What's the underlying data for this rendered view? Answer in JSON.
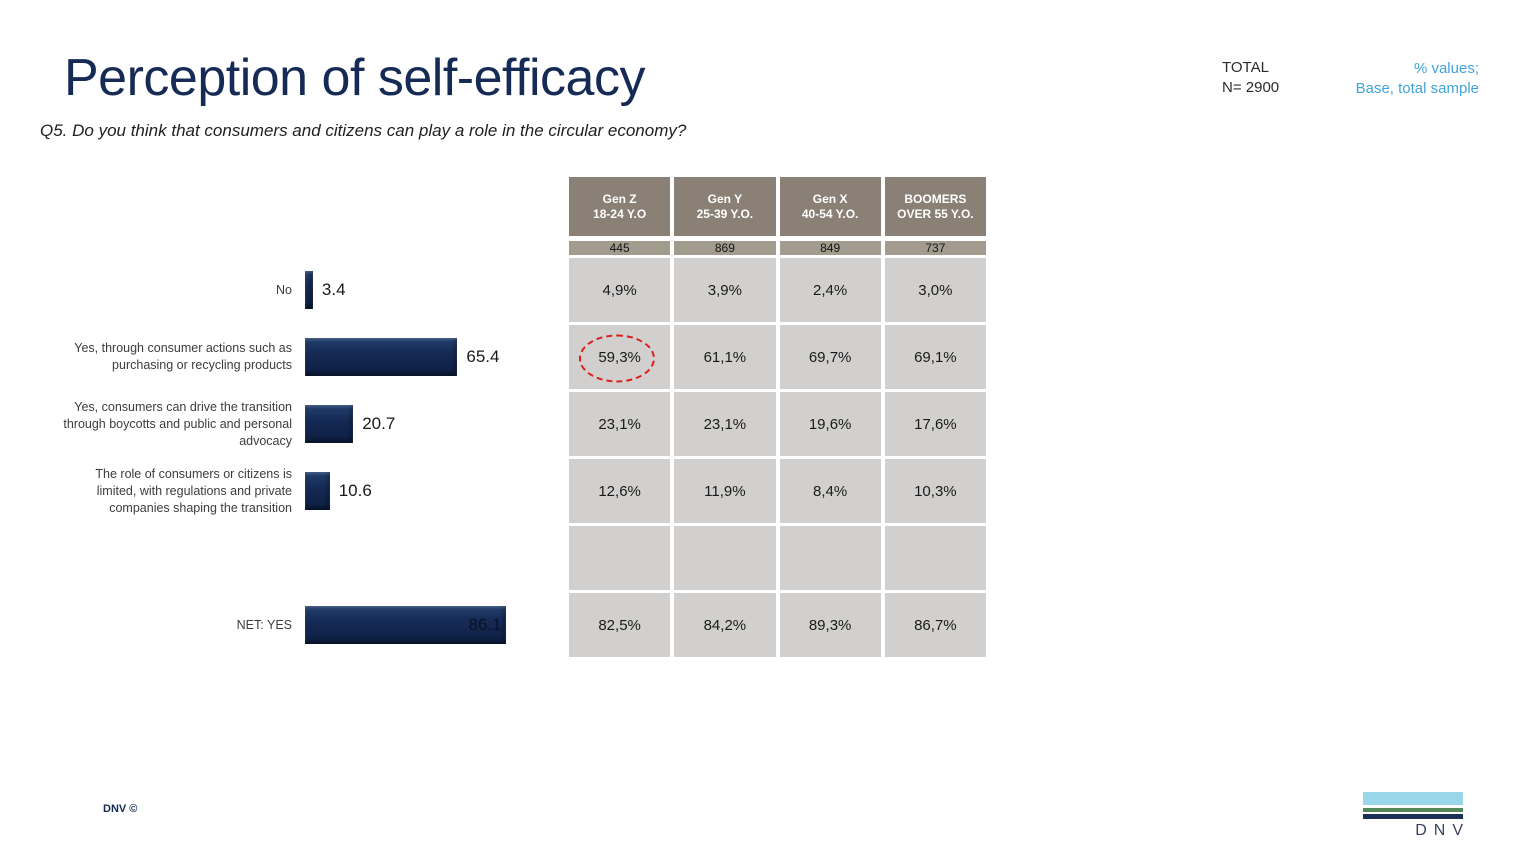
{
  "slide": {
    "title": "Perception of self-efficacy",
    "question": "Q5. Do you think that consumers and citizens can play a role in the circular economy?",
    "total": {
      "label": "TOTAL",
      "n": "N= 2900"
    },
    "note": {
      "line1": "% values;",
      "line2": "Base, total sample"
    },
    "footer_left": "DNV ©",
    "logo_text": "DNV"
  },
  "colors": {
    "accent_navy": "#152a55",
    "table_header_bg": "#8a8076",
    "table_base_bg": "#a49b8f",
    "table_cell_bg": "#d1d0ce",
    "note_blue": "#41a4d8",
    "highlight_red": "#dd1d1d",
    "logo_lightblue": "#99d6e9",
    "logo_green": "#52885a",
    "logo_navy": "#1a2f56"
  },
  "chart_data": [
    {
      "type": "bar",
      "orientation": "horizontal",
      "title": "Perception of self-efficacy (total sample)",
      "categories": [
        "No",
        "Yes, through consumer actions such as purchasing or recycling products",
        "Yes, consumers can drive the transition through boycotts and public and personal advocacy",
        "The role of consumers or citizens is limited, with regulations and private companies shaping the transition",
        "NET: YES"
      ],
      "values": [
        3.4,
        65.4,
        20.7,
        10.6,
        86.1
      ],
      "value_labels": [
        "3.4",
        "65.4",
        "20.7",
        "10.6",
        "86.1"
      ],
      "value_label_inside": [
        false,
        false,
        false,
        false,
        true
      ],
      "xlim": [
        0,
        100
      ],
      "grid": false,
      "legend": false
    },
    {
      "type": "table",
      "columns": [
        {
          "gen": "Gen Z",
          "age": "18-24 Y.O",
          "base": "445"
        },
        {
          "gen": "Gen Y",
          "age": "25-39 Y.O.",
          "base": "869"
        },
        {
          "gen": "Gen X",
          "age": "40-54 Y.O.",
          "base": "849"
        },
        {
          "gen": "BOOMERS",
          "age": "OVER 55 Y.O.",
          "base": "737"
        }
      ],
      "rows": [
        [
          "4,9%",
          "3,9%",
          "2,4%",
          "3,0%"
        ],
        [
          "59,3%",
          "61,1%",
          "69,7%",
          "69,1%"
        ],
        [
          "23,1%",
          "23,1%",
          "19,6%",
          "17,6%"
        ],
        [
          "12,6%",
          "11,9%",
          "8,4%",
          "10,3%"
        ],
        [
          "",
          "",
          "",
          ""
        ],
        [
          "82,5%",
          "84,2%",
          "89,3%",
          "86,7%"
        ]
      ],
      "highlight_cell": {
        "row": 1,
        "col": 0,
        "style": "red-dashed-ellipse"
      }
    }
  ]
}
